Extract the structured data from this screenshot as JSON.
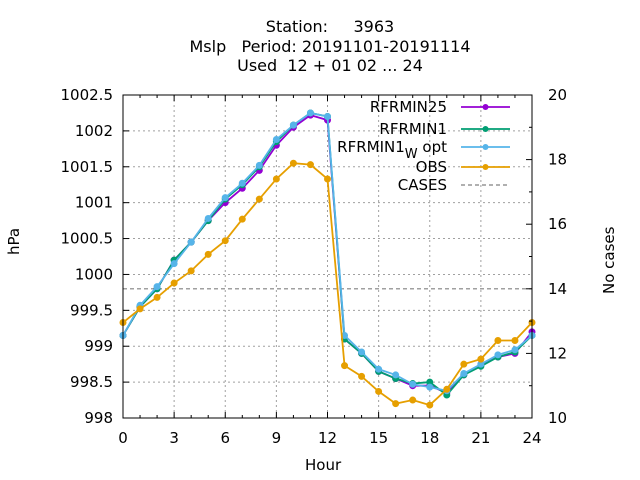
{
  "title": {
    "line1": "Station:     3963",
    "line2": "Mslp   Period: 20191101-20191114",
    "line3": "Used  12 + 01 02 ... 24"
  },
  "chart_data": {
    "type": "line",
    "xlabel": "Hour",
    "ylabel": "hPa",
    "y2label": "No cases",
    "xlim": [
      0,
      24
    ],
    "ylim": [
      998,
      1002.5
    ],
    "y2lim": [
      10,
      20
    ],
    "grid": true,
    "legend_position": "top-right",
    "x_ticks": [
      "0",
      "3",
      "6",
      "9",
      "12",
      "15",
      "18",
      "21",
      "24"
    ],
    "y_ticks": [
      "998",
      "998.5",
      "999",
      "999.5",
      "1000",
      "1000.5",
      "1001",
      "1001.5",
      "1002",
      "1002.5"
    ],
    "y2_ticks": [
      "10",
      "12",
      "14",
      "16",
      "18",
      "20"
    ],
    "x": [
      0,
      1,
      2,
      3,
      4,
      5,
      6,
      7,
      8,
      9,
      10,
      11,
      12,
      13,
      14,
      15,
      16,
      17,
      18,
      19,
      20,
      21,
      22,
      23,
      24
    ],
    "series": [
      {
        "name": "RFRMIN25",
        "color": "#9400d3",
        "marker": "circle",
        "values": [
          999.15,
          999.55,
          999.8,
          1000.2,
          1000.45,
          1000.75,
          1001.0,
          1001.2,
          1001.45,
          1001.8,
          1002.05,
          1002.22,
          1002.15,
          999.1,
          998.9,
          998.65,
          998.55,
          998.45,
          998.45,
          998.35,
          998.6,
          998.75,
          998.85,
          998.9,
          999.2
        ]
      },
      {
        "name": "RFRMIN1",
        "color": "#009e73",
        "marker": "circle",
        "values": [
          999.15,
          999.55,
          999.8,
          1000.2,
          1000.45,
          1000.75,
          1001.05,
          1001.25,
          1001.5,
          1001.85,
          1002.08,
          1002.25,
          1002.2,
          999.1,
          998.9,
          998.65,
          998.55,
          998.48,
          998.5,
          998.32,
          998.6,
          998.72,
          998.85,
          998.92,
          999.15
        ]
      },
      {
        "name": "RFRMIN1",
        "name_subscript": "W",
        "name_suffix": " opt",
        "color": "#56b4e9",
        "marker": "circle",
        "values": [
          999.15,
          999.57,
          999.83,
          1000.15,
          1000.45,
          1000.78,
          1001.07,
          1001.27,
          1001.52,
          1001.88,
          1002.08,
          1002.25,
          1002.2,
          999.15,
          998.92,
          998.68,
          998.6,
          998.47,
          998.43,
          998.38,
          998.62,
          998.75,
          998.88,
          998.95,
          999.15
        ]
      },
      {
        "name": "OBS",
        "color": "#e69f00",
        "marker": "circle",
        "values": [
          999.33,
          999.52,
          999.68,
          999.88,
          1000.05,
          1000.28,
          1000.47,
          1000.77,
          1001.05,
          1001.33,
          1001.55,
          1001.53,
          1001.33,
          998.73,
          998.58,
          998.37,
          998.2,
          998.25,
          998.18,
          998.4,
          998.75,
          998.82,
          999.08,
          999.08,
          999.33
        ]
      }
    ],
    "cases": {
      "name": "CASES",
      "color": "#808080",
      "value": 14,
      "axis": "y2"
    }
  }
}
